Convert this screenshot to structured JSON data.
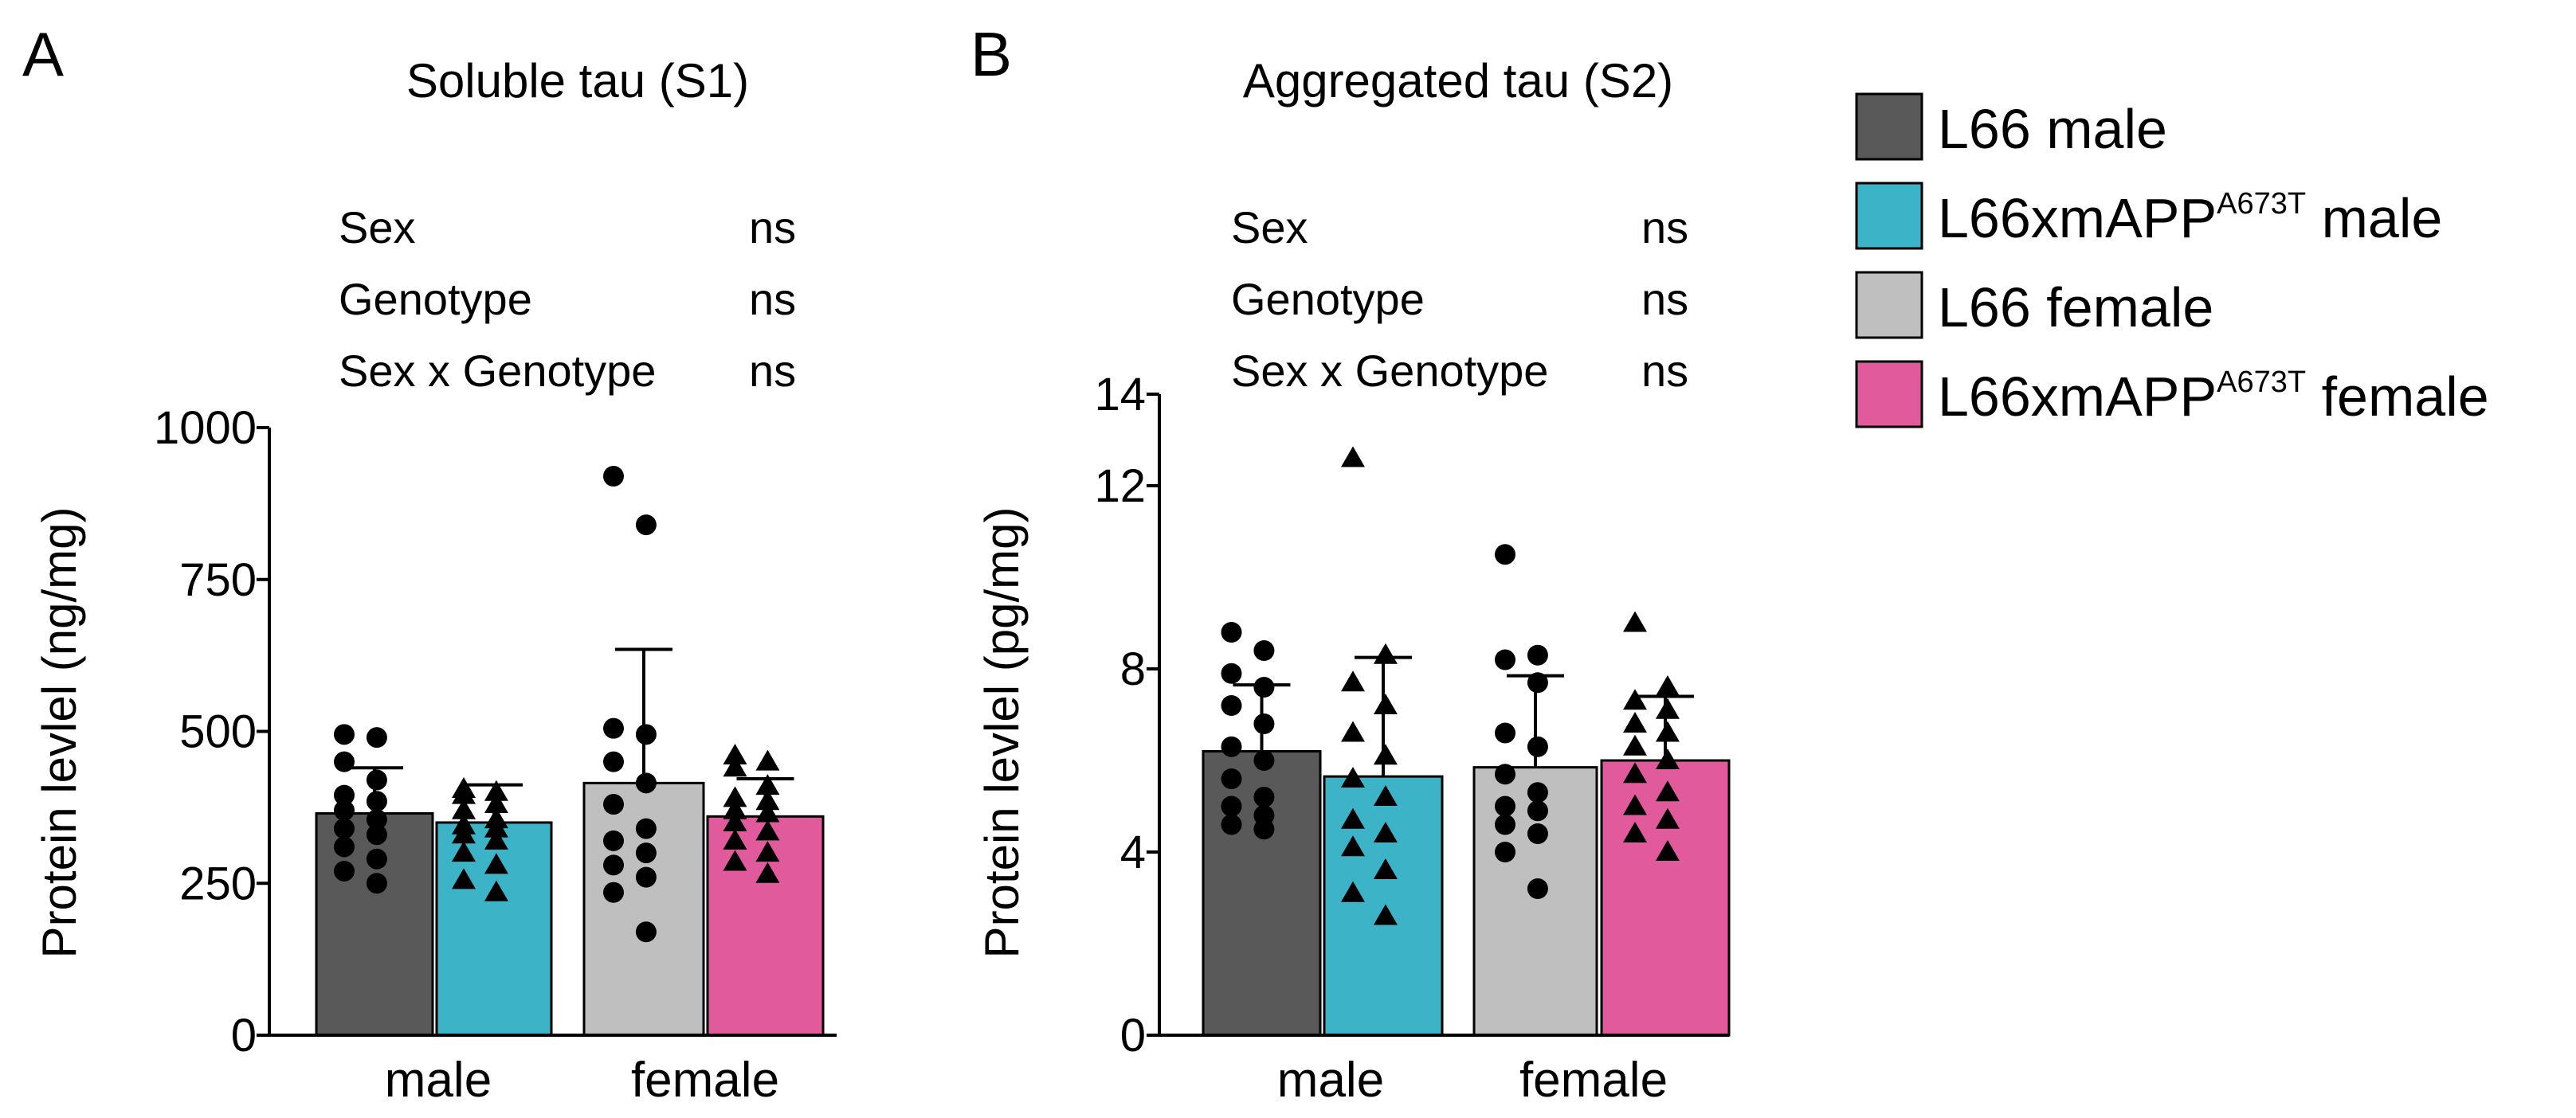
{
  "legend": [
    {
      "label": "L66 male",
      "sup": "",
      "suffix": "",
      "color": "#595959"
    },
    {
      "label": "L66xmAPP",
      "sup": "A673T",
      "suffix": " male",
      "color": "#3db3c8"
    },
    {
      "label": "L66 female",
      "sup": "",
      "suffix": "",
      "color": "#bfbfbf"
    },
    {
      "label": "L66xmAPP",
      "sup": "A673T",
      "suffix": " female",
      "color": "#e05a9c"
    }
  ],
  "chart_data": [
    {
      "type": "bar",
      "panel": "A",
      "title": "Soluble tau (S1)",
      "ylabel": "Protein levlel (ng/mg)",
      "ylim": [
        0,
        1000
      ],
      "yticks": [
        "0",
        "250",
        "500",
        "750",
        "1000"
      ],
      "categories": [
        "male",
        "female"
      ],
      "stats": [
        {
          "term": "Sex",
          "result": "ns"
        },
        {
          "term": "Genotype",
          "result": "ns"
        },
        {
          "term": "Sex x Genotype",
          "result": "ns"
        }
      ],
      "bars": [
        {
          "series": "L66 male",
          "category": "male",
          "mean": 365,
          "error": 75,
          "marker": "circle",
          "points": [
            495,
            490,
            450,
            420,
            395,
            385,
            370,
            355,
            340,
            330,
            310,
            290,
            270,
            250
          ]
        },
        {
          "series": "L66xmAPP A673T male",
          "category": "male",
          "mean": 350,
          "error": 62,
          "marker": "triangle",
          "points": [
            405,
            400,
            395,
            380,
            370,
            355,
            345,
            340,
            330,
            320,
            300,
            280,
            255,
            235
          ]
        },
        {
          "series": "L66 female",
          "category": "female",
          "mean": 415,
          "error": 220,
          "marker": "circle",
          "points": [
            920,
            840,
            505,
            495,
            450,
            415,
            380,
            340,
            320,
            300,
            280,
            260,
            235,
            170
          ]
        },
        {
          "series": "L66xmAPP A673T female",
          "category": "female",
          "mean": 360,
          "error": 62,
          "marker": "triangle",
          "points": [
            460,
            450,
            440,
            410,
            390,
            385,
            370,
            365,
            350,
            335,
            320,
            300,
            285,
            265
          ]
        }
      ]
    },
    {
      "type": "bar",
      "panel": "B",
      "title": "Aggregated tau (S2)",
      "ylabel": "Protein levlel (pg/mg)",
      "ylim": [
        0,
        14
      ],
      "yticks": [
        "0",
        "4",
        "8",
        "12",
        "14"
      ],
      "categories": [
        "male",
        "female"
      ],
      "stats": [
        {
          "term": "Sex",
          "result": "ns"
        },
        {
          "term": "Genotype",
          "result": "ns"
        },
        {
          "term": "Sex x Genotype",
          "result": "ns"
        }
      ],
      "bars": [
        {
          "series": "L66 male",
          "category": "male",
          "mean": 6.2,
          "error": 1.45,
          "marker": "circle",
          "points": [
            8.8,
            8.4,
            7.9,
            7.6,
            7.2,
            6.8,
            6.3,
            6.0,
            5.6,
            5.2,
            5.0,
            4.8,
            4.6,
            4.5
          ]
        },
        {
          "series": "L66xmAPP A673T male",
          "category": "male",
          "mean": 5.65,
          "error": 2.6,
          "marker": "triangle",
          "points": [
            12.6,
            8.3,
            7.7,
            7.2,
            6.6,
            6.1,
            5.6,
            5.2,
            4.7,
            4.4,
            4.1,
            3.6,
            3.1,
            2.6
          ]
        },
        {
          "series": "L66 female",
          "category": "female",
          "mean": 5.85,
          "error": 2.0,
          "marker": "circle",
          "points": [
            10.5,
            8.3,
            8.2,
            7.7,
            6.6,
            6.3,
            5.7,
            5.3,
            5.0,
            4.9,
            4.6,
            4.4,
            4.0,
            3.2
          ]
        },
        {
          "series": "L66xmAPP A673T female",
          "category": "female",
          "mean": 6.0,
          "error": 1.4,
          "marker": "triangle",
          "points": [
            9.0,
            7.6,
            7.3,
            7.1,
            6.8,
            6.6,
            6.3,
            6.0,
            5.7,
            5.3,
            5.0,
            4.7,
            4.4,
            4.0
          ]
        }
      ]
    }
  ]
}
